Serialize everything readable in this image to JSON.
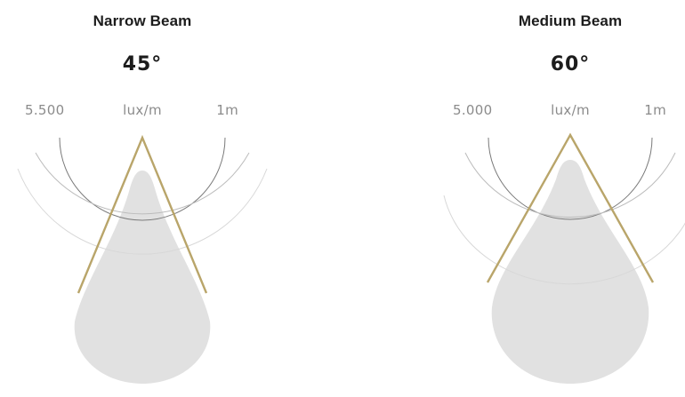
{
  "beams": [
    {
      "title": "Narrow Beam",
      "angle": "45°",
      "lux_value": "5.500",
      "lux_unit": "lux/m",
      "distance": "1m",
      "colors": {
        "beam_outline": "#b9a56a",
        "beam_fill": "#e1e1e1",
        "ring": "#7a7a7a"
      }
    },
    {
      "title": "Medium Beam",
      "angle": "60°",
      "lux_value": "5.000",
      "lux_unit": "lux/m",
      "distance": "1m",
      "colors": {
        "beam_outline": "#b9a56a",
        "beam_fill": "#e1e1e1",
        "ring": "#7a7a7a"
      }
    }
  ]
}
